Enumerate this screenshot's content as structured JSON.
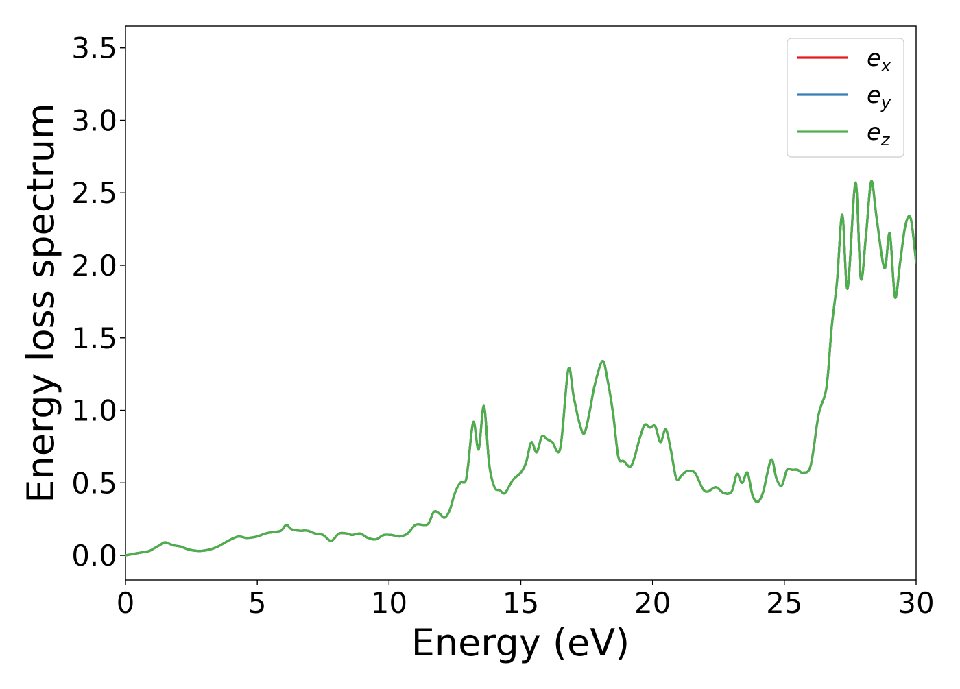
{
  "chart_data": {
    "type": "line",
    "title": "",
    "xlabel": "Energy (eV)",
    "ylabel": "Energy loss spectrum",
    "xlim": [
      0,
      30
    ],
    "ylim": [
      -0.17,
      3.65
    ],
    "xticks": [
      0,
      5,
      10,
      15,
      20,
      25,
      30
    ],
    "xtick_labels": [
      "0",
      "5",
      "10",
      "15",
      "20",
      "25",
      "30"
    ],
    "yticks": [
      0.0,
      0.5,
      1.0,
      1.5,
      2.0,
      2.5,
      3.0,
      3.5
    ],
    "ytick_labels": [
      "0.0",
      "0.5",
      "1.0",
      "1.5",
      "2.0",
      "2.5",
      "3.0",
      "3.5"
    ],
    "grid": false,
    "legend_position": "top-right",
    "series": [
      {
        "name": "e_x",
        "symbol": "e",
        "subscript": "x",
        "color": "#e41a1c"
      },
      {
        "name": "e_y",
        "symbol": "e",
        "subscript": "y",
        "color": "#377eb8"
      },
      {
        "name": "e_z",
        "symbol": "e",
        "subscript": "z",
        "color": "#4daf4a"
      }
    ],
    "points": [
      [
        0.0,
        0.0
      ],
      [
        0.3,
        0.01
      ],
      [
        0.6,
        0.02
      ],
      [
        0.9,
        0.03
      ],
      [
        1.1,
        0.05
      ],
      [
        1.3,
        0.07
      ],
      [
        1.5,
        0.09
      ],
      [
        1.8,
        0.07
      ],
      [
        2.1,
        0.06
      ],
      [
        2.4,
        0.04
      ],
      [
        2.8,
        0.03
      ],
      [
        3.2,
        0.04
      ],
      [
        3.5,
        0.06
      ],
      [
        3.7,
        0.08
      ],
      [
        4.0,
        0.11
      ],
      [
        4.3,
        0.13
      ],
      [
        4.6,
        0.12
      ],
      [
        5.0,
        0.13
      ],
      [
        5.3,
        0.15
      ],
      [
        5.6,
        0.16
      ],
      [
        5.9,
        0.17
      ],
      [
        6.1,
        0.21
      ],
      [
        6.3,
        0.18
      ],
      [
        6.6,
        0.17
      ],
      [
        6.9,
        0.17
      ],
      [
        7.2,
        0.15
      ],
      [
        7.5,
        0.14
      ],
      [
        7.8,
        0.1
      ],
      [
        8.1,
        0.15
      ],
      [
        8.4,
        0.15
      ],
      [
        8.6,
        0.14
      ],
      [
        8.9,
        0.15
      ],
      [
        9.2,
        0.12
      ],
      [
        9.5,
        0.11
      ],
      [
        9.8,
        0.14
      ],
      [
        10.1,
        0.14
      ],
      [
        10.4,
        0.13
      ],
      [
        10.7,
        0.15
      ],
      [
        11.0,
        0.21
      ],
      [
        11.3,
        0.21
      ],
      [
        11.5,
        0.22
      ],
      [
        11.7,
        0.3
      ],
      [
        11.9,
        0.29
      ],
      [
        12.1,
        0.26
      ],
      [
        12.3,
        0.31
      ],
      [
        12.5,
        0.43
      ],
      [
        12.7,
        0.5
      ],
      [
        12.9,
        0.51
      ],
      [
        13.0,
        0.62
      ],
      [
        13.2,
        0.92
      ],
      [
        13.4,
        0.73
      ],
      [
        13.6,
        1.03
      ],
      [
        13.8,
        0.63
      ],
      [
        14.0,
        0.47
      ],
      [
        14.2,
        0.45
      ],
      [
        14.4,
        0.43
      ],
      [
        14.7,
        0.52
      ],
      [
        15.0,
        0.57
      ],
      [
        15.2,
        0.64
      ],
      [
        15.4,
        0.78
      ],
      [
        15.6,
        0.71
      ],
      [
        15.8,
        0.82
      ],
      [
        16.0,
        0.8
      ],
      [
        16.2,
        0.78
      ],
      [
        16.5,
        0.74
      ],
      [
        16.8,
        1.28
      ],
      [
        17.0,
        1.1
      ],
      [
        17.2,
        0.93
      ],
      [
        17.4,
        0.84
      ],
      [
        17.6,
        0.98
      ],
      [
        17.8,
        1.17
      ],
      [
        18.1,
        1.34
      ],
      [
        18.3,
        1.2
      ],
      [
        18.5,
        0.98
      ],
      [
        18.7,
        0.68
      ],
      [
        18.9,
        0.65
      ],
      [
        19.2,
        0.62
      ],
      [
        19.5,
        0.8
      ],
      [
        19.7,
        0.9
      ],
      [
        19.9,
        0.88
      ],
      [
        20.1,
        0.89
      ],
      [
        20.3,
        0.78
      ],
      [
        20.5,
        0.87
      ],
      [
        20.7,
        0.72
      ],
      [
        20.9,
        0.53
      ],
      [
        21.1,
        0.55
      ],
      [
        21.3,
        0.58
      ],
      [
        21.6,
        0.57
      ],
      [
        21.9,
        0.46
      ],
      [
        22.1,
        0.44
      ],
      [
        22.4,
        0.47
      ],
      [
        22.7,
        0.43
      ],
      [
        23.0,
        0.44
      ],
      [
        23.2,
        0.56
      ],
      [
        23.4,
        0.5
      ],
      [
        23.6,
        0.57
      ],
      [
        23.8,
        0.41
      ],
      [
        24.0,
        0.37
      ],
      [
        24.2,
        0.44
      ],
      [
        24.5,
        0.66
      ],
      [
        24.7,
        0.53
      ],
      [
        24.9,
        0.48
      ],
      [
        25.1,
        0.59
      ],
      [
        25.3,
        0.59
      ],
      [
        25.5,
        0.59
      ],
      [
        25.7,
        0.57
      ],
      [
        26.0,
        0.62
      ],
      [
        26.3,
        0.97
      ],
      [
        26.6,
        1.16
      ],
      [
        26.8,
        1.58
      ],
      [
        27.0,
        1.89
      ],
      [
        27.2,
        2.35
      ],
      [
        27.4,
        1.84
      ],
      [
        27.7,
        2.57
      ],
      [
        27.9,
        1.91
      ],
      [
        28.1,
        2.21
      ],
      [
        28.3,
        2.58
      ],
      [
        28.5,
        2.33
      ],
      [
        28.8,
        1.98
      ],
      [
        29.0,
        2.22
      ],
      [
        29.2,
        1.78
      ],
      [
        29.4,
        2.03
      ],
      [
        29.6,
        2.28
      ],
      [
        29.8,
        2.32
      ],
      [
        30.0,
        2.02
      ]
    ]
  }
}
